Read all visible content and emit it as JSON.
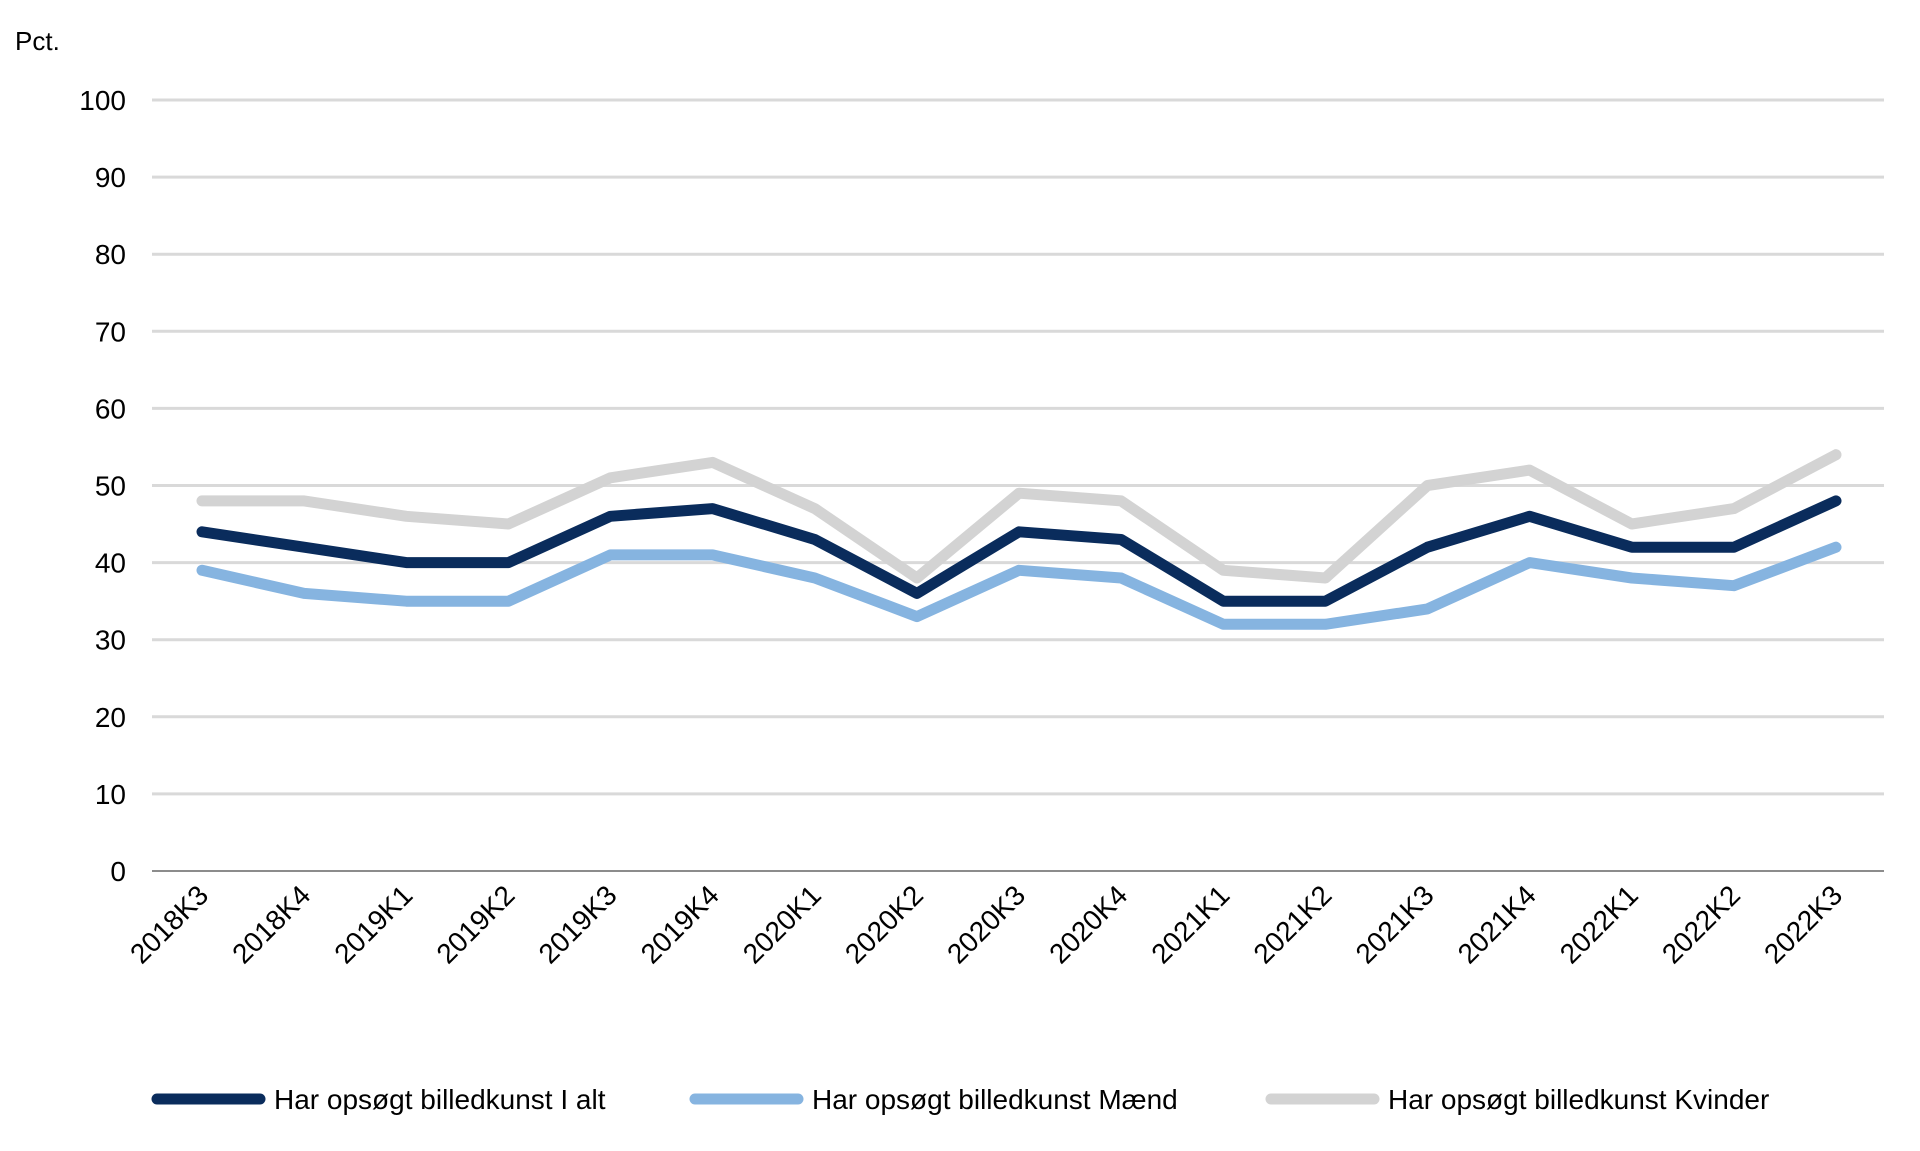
{
  "chart_data": {
    "type": "line",
    "title": "",
    "unit_label": "Pct.",
    "xlabel": "",
    "ylabel": "Pct.",
    "ylim": [
      0,
      100
    ],
    "yticks": [
      0,
      10,
      20,
      30,
      40,
      50,
      60,
      70,
      80,
      90,
      100
    ],
    "grid": true,
    "legend_position": "bottom",
    "categories": [
      "2018K3",
      "2018K4",
      "2019K1",
      "2019K2",
      "2019K3",
      "2019K4",
      "2020K1",
      "2020K2",
      "2020K3",
      "2020K4",
      "2021K1",
      "2021K2",
      "2021K3",
      "2021K4",
      "2022K1",
      "2022K2",
      "2022K3"
    ],
    "series": [
      {
        "name": "Har opsøgt billedkunst I alt",
        "color": "#0a2c5c",
        "values": [
          44,
          42,
          40,
          40,
          46,
          47,
          43,
          36,
          44,
          43,
          35,
          35,
          42,
          46,
          42,
          42,
          48
        ]
      },
      {
        "name": "Har opsøgt billedkunst Mænd",
        "color": "#86b4e0",
        "values": [
          39,
          36,
          35,
          35,
          41,
          41,
          38,
          33,
          39,
          38,
          32,
          32,
          34,
          40,
          38,
          37,
          42
        ]
      },
      {
        "name": "Har opsøgt billedkunst Kvinder",
        "color": "#d3d3d3",
        "values": [
          48,
          48,
          46,
          45,
          51,
          53,
          47,
          38,
          49,
          48,
          39,
          38,
          50,
          52,
          45,
          47,
          54
        ]
      }
    ]
  }
}
